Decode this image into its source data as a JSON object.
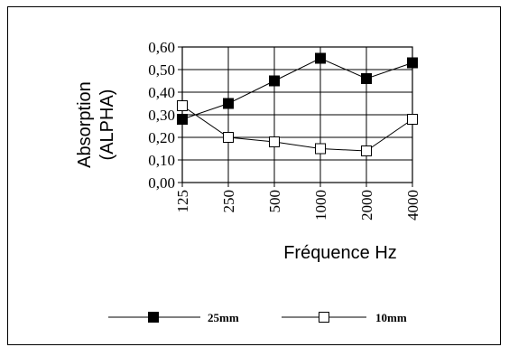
{
  "chart_data": {
    "type": "line",
    "categories": [
      "125",
      "250",
      "500",
      "1000",
      "2000",
      "4000"
    ],
    "y_ticks": [
      "0,00",
      "0,10",
      "0,20",
      "0,30",
      "0,40",
      "0,50",
      "0,60"
    ],
    "ylim": [
      0,
      0.6
    ],
    "ylabel_line1": "Absorption",
    "ylabel_line2": "(ALPHA)",
    "xlabel": "Fréquence Hz",
    "grid": true,
    "series": [
      {
        "name": "25mm",
        "marker": "filled-square",
        "values": [
          0.28,
          0.35,
          0.45,
          0.55,
          0.46,
          0.53
        ]
      },
      {
        "name": "10mm",
        "marker": "open-square",
        "values": [
          0.34,
          0.2,
          0.18,
          0.15,
          0.14,
          0.28
        ]
      }
    ]
  }
}
